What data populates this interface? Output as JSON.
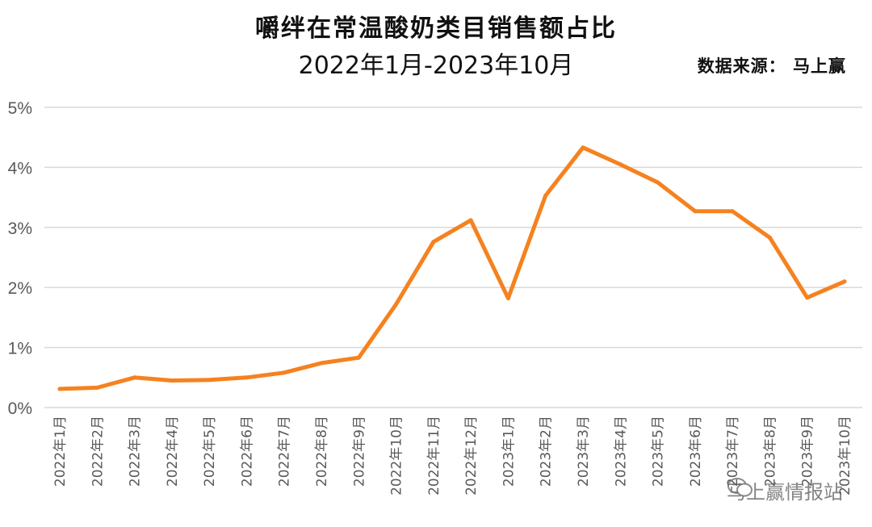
{
  "chart_data": {
    "type": "line",
    "title": "嚼绊在常温酸奶类目销售额占比",
    "subtitle": "2022年1月-2023年10月",
    "source": "数据来源：  马上赢",
    "ylim": [
      0,
      5
    ],
    "y_ticks": [
      "0%",
      "1%",
      "2%",
      "3%",
      "4%",
      "5%"
    ],
    "grid": true,
    "categories": [
      "2022年1月",
      "2022年2月",
      "2022年3月",
      "2022年4月",
      "2022年5月",
      "2022年6月",
      "2022年7月",
      "2022年8月",
      "2022年9月",
      "2022年10月",
      "2022年11月",
      "2022年12月",
      "2023年1月",
      "2023年2月",
      "2023年3月",
      "2023年4月",
      "2023年5月",
      "2023年6月",
      "2023年7月",
      "2023年8月",
      "2023年9月",
      "2023年10月"
    ],
    "series": [
      {
        "values": [
          0.31,
          0.33,
          0.5,
          0.45,
          0.46,
          0.5,
          0.58,
          0.74,
          0.83,
          1.72,
          2.76,
          3.12,
          1.82,
          3.53,
          4.33,
          4.05,
          3.75,
          3.27,
          3.27,
          2.83,
          1.83,
          2.1
        ],
        "color": "#F5821F"
      }
    ],
    "watermark": "马上赢情报站"
  }
}
